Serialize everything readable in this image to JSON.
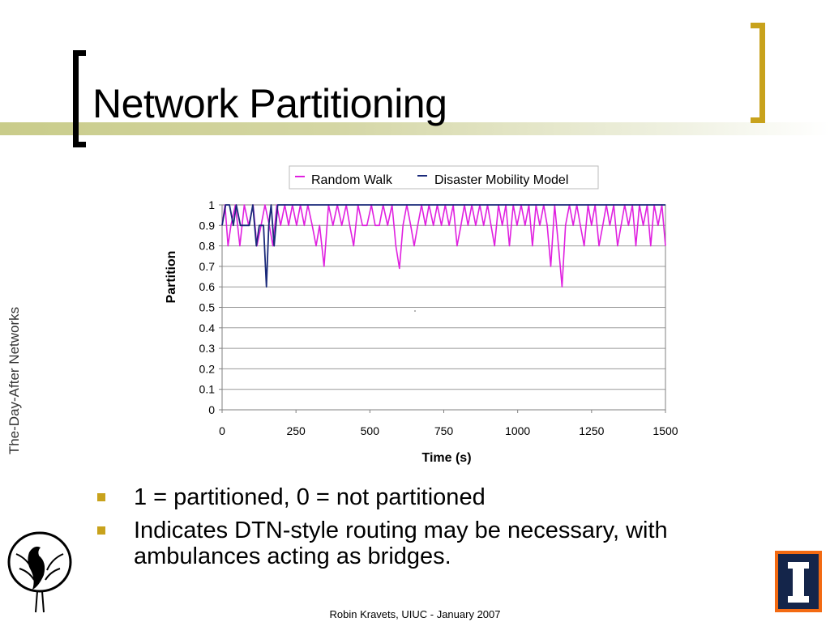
{
  "slide": {
    "title": "Network Partitioning",
    "side_text": "The-Day-After Networks",
    "footer": "Robin Kravets, UIUC - January 2007",
    "bullets": [
      "1 = partitioned, 0 = not partitioned",
      "Indicates DTN-style routing may be necessary, with ambulances acting as bridges."
    ],
    "accent_color": "#c8a21c"
  },
  "chart_data": {
    "type": "line",
    "xlabel": "Time (s)",
    "ylabel": "Partition",
    "xlim": [
      0,
      1500
    ],
    "ylim": [
      0,
      1
    ],
    "x_ticks": [
      "0",
      "250",
      "500",
      "750",
      "1000",
      "1250",
      "1500"
    ],
    "y_ticks": [
      "0",
      "0.1",
      "0.2",
      "0.3",
      "0.4",
      "0.5",
      "0.6",
      "0.7",
      "0.8",
      "0.9",
      "1"
    ],
    "grid": "horizontal",
    "legend_position": "top",
    "series": [
      {
        "name": "Random Walk",
        "color": "#e020e0",
        "points": [
          [
            0,
            0.9
          ],
          [
            10,
            1
          ],
          [
            20,
            0.8
          ],
          [
            30,
            0.9
          ],
          [
            45,
            1
          ],
          [
            60,
            0.8
          ],
          [
            75,
            1
          ],
          [
            90,
            0.9
          ],
          [
            105,
            1
          ],
          [
            118,
            0.8
          ],
          [
            132,
            0.9
          ],
          [
            145,
            1
          ],
          [
            160,
            0.9
          ],
          [
            172,
            0.8
          ],
          [
            185,
            1
          ],
          [
            198,
            0.9
          ],
          [
            212,
            1
          ],
          [
            225,
            0.9
          ],
          [
            238,
            1
          ],
          [
            252,
            0.9
          ],
          [
            265,
            1
          ],
          [
            278,
            0.9
          ],
          [
            290,
            1
          ],
          [
            305,
            0.9
          ],
          [
            318,
            0.8
          ],
          [
            330,
            0.9
          ],
          [
            345,
            0.7
          ],
          [
            360,
            1
          ],
          [
            375,
            0.9
          ],
          [
            390,
            1
          ],
          [
            405,
            0.9
          ],
          [
            420,
            1
          ],
          [
            432,
            0.9
          ],
          [
            445,
            0.8
          ],
          [
            460,
            1
          ],
          [
            475,
            0.9
          ],
          [
            490,
            0.9
          ],
          [
            505,
            1
          ],
          [
            518,
            0.9
          ],
          [
            532,
            0.9
          ],
          [
            545,
            1
          ],
          [
            560,
            0.9
          ],
          [
            575,
            1
          ],
          [
            588,
            0.8
          ],
          [
            600,
            0.69
          ],
          [
            612,
            0.9
          ],
          [
            625,
            1
          ],
          [
            638,
            0.9
          ],
          [
            650,
            0.8
          ],
          [
            662,
            0.9
          ],
          [
            675,
            1
          ],
          [
            688,
            0.9
          ],
          [
            700,
            1
          ],
          [
            715,
            0.9
          ],
          [
            728,
            1
          ],
          [
            742,
            0.9
          ],
          [
            755,
            1
          ],
          [
            768,
            0.9
          ],
          [
            782,
            1
          ],
          [
            795,
            0.8
          ],
          [
            808,
            0.9
          ],
          [
            820,
            1
          ],
          [
            832,
            0.9
          ],
          [
            845,
            1
          ],
          [
            858,
            0.9
          ],
          [
            872,
            1
          ],
          [
            885,
            0.9
          ],
          [
            898,
            1
          ],
          [
            910,
            0.9
          ],
          [
            922,
            0.8
          ],
          [
            935,
            1
          ],
          [
            948,
            0.9
          ],
          [
            960,
            1
          ],
          [
            972,
            0.8
          ],
          [
            985,
            1
          ],
          [
            998,
            0.9
          ],
          [
            1012,
            1
          ],
          [
            1025,
            0.9
          ],
          [
            1038,
            1
          ],
          [
            1050,
            0.8
          ],
          [
            1062,
            1
          ],
          [
            1075,
            0.9
          ],
          [
            1088,
            1
          ],
          [
            1100,
            0.9
          ],
          [
            1112,
            0.7
          ],
          [
            1125,
            1
          ],
          [
            1138,
            0.8
          ],
          [
            1150,
            0.6
          ],
          [
            1162,
            0.9
          ],
          [
            1175,
            1
          ],
          [
            1188,
            0.9
          ],
          [
            1200,
            1
          ],
          [
            1212,
            0.9
          ],
          [
            1225,
            0.8
          ],
          [
            1238,
            1
          ],
          [
            1250,
            0.9
          ],
          [
            1262,
            1
          ],
          [
            1275,
            0.8
          ],
          [
            1288,
            0.9
          ],
          [
            1300,
            1
          ],
          [
            1312,
            0.9
          ],
          [
            1325,
            1
          ],
          [
            1338,
            0.8
          ],
          [
            1350,
            0.9
          ],
          [
            1362,
            1
          ],
          [
            1375,
            0.9
          ],
          [
            1388,
            1
          ],
          [
            1400,
            0.8
          ],
          [
            1412,
            1
          ],
          [
            1425,
            0.9
          ],
          [
            1438,
            1
          ],
          [
            1450,
            0.8
          ],
          [
            1462,
            1
          ],
          [
            1475,
            0.9
          ],
          [
            1488,
            1
          ],
          [
            1500,
            0.8
          ]
        ]
      },
      {
        "name": "Disaster Mobility Model",
        "color": "#1a2a7a",
        "points": [
          [
            0,
            0.9
          ],
          [
            12,
            1
          ],
          [
            25,
            1
          ],
          [
            38,
            0.9
          ],
          [
            48,
            1
          ],
          [
            62,
            0.9
          ],
          [
            78,
            0.9
          ],
          [
            92,
            0.9
          ],
          [
            104,
            1
          ],
          [
            116,
            0.8
          ],
          [
            126,
            0.9
          ],
          [
            140,
            0.9
          ],
          [
            150,
            0.6
          ],
          [
            158,
            0.9
          ],
          [
            166,
            1
          ],
          [
            176,
            0.8
          ],
          [
            188,
            1
          ],
          [
            200,
            1
          ],
          [
            400,
            1
          ],
          [
            800,
            1
          ],
          [
            1200,
            1
          ],
          [
            1500,
            1
          ]
        ]
      }
    ]
  }
}
